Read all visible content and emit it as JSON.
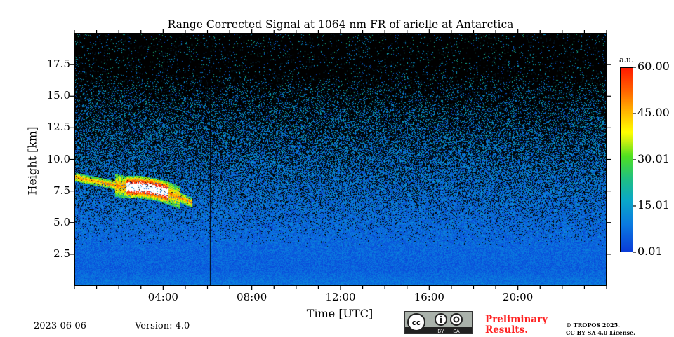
{
  "chart_data": {
    "type": "heatmap",
    "title": "Range Corrected Signal at 1064 nm FR of arielle at Antarctica",
    "xlabel": "Time [UTC]",
    "ylabel": "Height [km]",
    "xlim": [
      0,
      24
    ],
    "ylim": [
      0,
      20
    ],
    "x_ticks": [
      4,
      8,
      12,
      16,
      20
    ],
    "x_tick_labels": [
      "04:00",
      "08:00",
      "12:00",
      "16:00",
      "20:00"
    ],
    "y_ticks": [
      2.5,
      5.0,
      7.5,
      10.0,
      12.5,
      15.0,
      17.5
    ],
    "y_tick_labels": [
      "2.5",
      "5.0",
      "7.5",
      "10.0",
      "12.5",
      "15.0",
      "17.5"
    ],
    "colorbar": {
      "unit": "a.u.",
      "range": [
        0.01,
        60.0
      ],
      "ticks": [
        0.01,
        15.01,
        30.01,
        45.0,
        60.0
      ],
      "tick_labels": [
        "0.01",
        "15.01",
        "30.01",
        "45.00",
        "60.00"
      ],
      "colormap": "jet"
    },
    "features": {
      "background_signal_near_ground": 2,
      "noise_increases_with_height": true,
      "cloud": {
        "time_start_h": 0.0,
        "time_end_h": 5.3,
        "height_bottom_km": 6.9,
        "height_top_km": 9.0,
        "peak_value": 60
      },
      "data_gap_time_h": 6.1
    }
  },
  "footer": {
    "date": "2023-06-06",
    "version": "Version: 4.0",
    "license_badge": [
      "cc",
      "BY",
      "SA"
    ],
    "preliminary_line1": "Preliminary",
    "preliminary_line2": "Results.",
    "copyright_line1": "© TROPOS 2025.",
    "copyright_line2": "CC BY SA 4.0 License."
  }
}
